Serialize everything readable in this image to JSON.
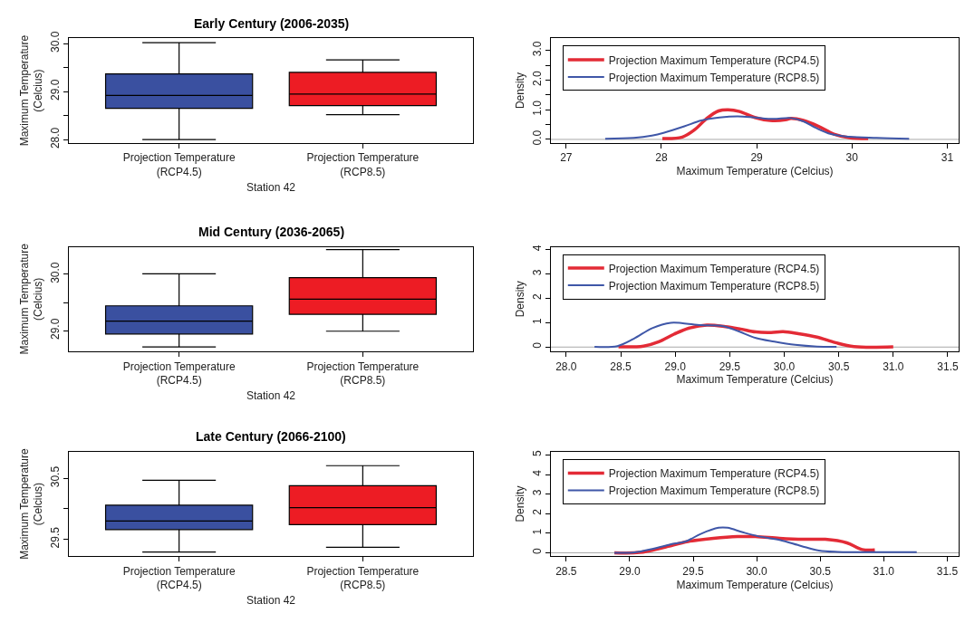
{
  "chart_data": [
    {
      "type": "box",
      "title": "Early Century (2006-2035)",
      "xlabel": "Station 42",
      "ylabel": "Maximum Temperature\n(Celcius)",
      "categories": [
        "Projection Temperature\n(RCP4.5)",
        "Projection Temperature\n(RCP8.5)"
      ],
      "colors": [
        "#3a50a0",
        "#ed1c24"
      ],
      "boxes": [
        {
          "low": 28.0,
          "q1": 28.65,
          "median": 28.92,
          "q3": 29.37,
          "high": 30.02
        },
        {
          "low": 28.52,
          "q1": 28.71,
          "median": 28.95,
          "q3": 29.4,
          "high": 29.66
        }
      ],
      "ylim": [
        27.93,
        30.11
      ],
      "yticks": [
        {
          "value": 28,
          "label": "28.0"
        },
        {
          "value": 28.5,
          "label": null
        },
        {
          "value": 29,
          "label": "29.0"
        },
        {
          "value": 29.5,
          "label": null
        },
        {
          "value": 30,
          "label": "30.0"
        }
      ],
      "legend": false
    },
    {
      "type": "line",
      "xlabel": "Maximum Temperature (Celcius)",
      "ylabel": "Density",
      "legend": "top left",
      "series": [
        {
          "name": "Projection Maximum Temperature (RCP4.5)",
          "color": "#e32b36",
          "x": [
            28.01,
            28.22,
            28.35,
            28.47,
            28.6,
            28.7,
            28.82,
            28.98,
            29.14,
            29.3,
            29.36,
            29.49,
            29.65,
            29.81,
            29.97,
            30.17
          ],
          "values": [
            0.03,
            0.08,
            0.33,
            0.69,
            0.96,
            1.0,
            0.94,
            0.74,
            0.64,
            0.66,
            0.71,
            0.64,
            0.44,
            0.18,
            0.06,
            0.03
          ]
        },
        {
          "name": "Projection Maximum Temperature (RCP8.5)",
          "color": "#3f57a8",
          "x": [
            27.41,
            27.71,
            27.9,
            28.03,
            28.24,
            28.42,
            28.61,
            28.8,
            28.98,
            29.17,
            29.36,
            29.49,
            29.62,
            29.78,
            29.97,
            30.26,
            30.6
          ],
          "values": [
            0.02,
            0.05,
            0.13,
            0.23,
            0.44,
            0.64,
            0.74,
            0.78,
            0.74,
            0.69,
            0.72,
            0.61,
            0.39,
            0.18,
            0.09,
            0.05,
            0.02
          ]
        }
      ],
      "xlim": [
        26.84,
        31.12
      ],
      "xticks": [
        27,
        28,
        29,
        30,
        31
      ],
      "ylim": [
        -0.12,
        3.41
      ],
      "yticks": [
        {
          "value": 0,
          "label": "0.0"
        },
        {
          "value": 0.5,
          "label": null
        },
        {
          "value": 1,
          "label": "1.0"
        },
        {
          "value": 1.5,
          "label": null
        },
        {
          "value": 2,
          "label": "2.0"
        },
        {
          "value": 2.5,
          "label": null
        },
        {
          "value": 3,
          "label": "3.0"
        }
      ],
      "ref_lines": [
        {
          "axis": "y",
          "value": 0,
          "color": "#aaaaaa"
        }
      ]
    },
    {
      "type": "box",
      "title": "Mid Century (2036-2065)",
      "xlabel": "Station 42",
      "ylabel": "Maximum Temperature\n(Celcius)",
      "categories": [
        "Projection Temperature\n(RCP4.5)",
        "Projection Temperature\n(RCP8.5)"
      ],
      "colors": [
        "#3a50a0",
        "#ed1c24"
      ],
      "boxes": [
        {
          "low": 28.71,
          "q1": 28.94,
          "median": 29.17,
          "q3": 29.44,
          "high": 30.01
        },
        {
          "low": 28.99,
          "q1": 29.29,
          "median": 29.56,
          "q3": 29.94,
          "high": 30.44
        }
      ],
      "ylim": [
        28.63,
        30.49
      ],
      "yticks": [
        {
          "value": 29,
          "label": "29.0"
        },
        {
          "value": 29.5,
          "label": null
        },
        {
          "value": 30,
          "label": "30.0"
        }
      ],
      "legend": false
    },
    {
      "type": "line",
      "xlabel": "Maximum Temperature (Celcius)",
      "ylabel": "Density",
      "legend": "top left",
      "series": [
        {
          "name": "Projection Maximum Temperature (RCP4.5)",
          "color": "#e32b36",
          "x": [
            28.48,
            28.71,
            28.85,
            28.99,
            29.13,
            29.29,
            29.46,
            29.6,
            29.74,
            29.88,
            29.99,
            30.13,
            30.3,
            30.47,
            30.64,
            31.0
          ],
          "values": [
            0.01,
            0.04,
            0.22,
            0.53,
            0.78,
            0.9,
            0.84,
            0.74,
            0.62,
            0.6,
            0.63,
            0.55,
            0.41,
            0.18,
            0.02,
            0.01
          ]
        },
        {
          "name": "Projection Maximum Temperature (RCP8.5)",
          "color": "#3f57a8",
          "x": [
            28.26,
            28.47,
            28.62,
            28.79,
            28.96,
            29.07,
            29.24,
            29.44,
            29.58,
            29.74,
            29.91,
            30.1,
            30.3,
            30.48
          ],
          "values": [
            0.01,
            0.04,
            0.34,
            0.78,
            1.0,
            0.98,
            0.9,
            0.86,
            0.65,
            0.37,
            0.22,
            0.09,
            0.02,
            0.01
          ]
        }
      ],
      "xlim": [
        27.86,
        31.6
      ],
      "xticks": [
        {
          "value": 28,
          "label": "28.0"
        },
        28.5,
        {
          "value": 29,
          "label": "29.0"
        },
        29.5,
        {
          "value": 30,
          "label": "30.0"
        },
        30.5,
        {
          "value": 31,
          "label": "31.0"
        },
        31.5
      ],
      "ylim": [
        -0.18,
        4.12
      ],
      "yticks": [
        0,
        1,
        2,
        3,
        4
      ],
      "ref_lines": [
        {
          "axis": "y",
          "value": 0,
          "color": "#aaaaaa"
        }
      ]
    },
    {
      "type": "box",
      "title": "Late Century (2066-2100)",
      "xlabel": "Station 42",
      "ylabel": "Maximum Temperature\n(Celcius)",
      "categories": [
        "Projection Temperature\n(RCP4.5)",
        "Projection Temperature\n(RCP8.5)"
      ],
      "colors": [
        "#3a50a0",
        "#ed1c24"
      ],
      "boxes": [
        {
          "low": 29.29,
          "q1": 29.66,
          "median": 29.8,
          "q3": 30.06,
          "high": 30.47
        },
        {
          "low": 29.37,
          "q1": 29.74,
          "median": 30.02,
          "q3": 30.38,
          "high": 30.71
        }
      ],
      "ylim": [
        29.22,
        30.94
      ],
      "yticks": [
        {
          "value": 29.5,
          "label": "29.5"
        },
        {
          "value": 30,
          "label": null
        },
        {
          "value": 30.5,
          "label": "30.5"
        }
      ],
      "legend": false
    },
    {
      "type": "line",
      "xlabel": "Maximum Temperature (Celcius)",
      "ylabel": "Density",
      "legend": "top left",
      "series": [
        {
          "name": "Projection Maximum Temperature (RCP4.5)",
          "color": "#e32b36",
          "x": [
            28.88,
            29.08,
            29.27,
            29.46,
            29.66,
            29.85,
            29.99,
            30.18,
            30.37,
            30.54,
            30.71,
            30.83,
            30.93
          ],
          "values": [
            0.0,
            0.02,
            0.28,
            0.58,
            0.74,
            0.83,
            0.83,
            0.74,
            0.69,
            0.69,
            0.51,
            0.17,
            0.15
          ]
        },
        {
          "name": "Projection Maximum Temperature (RCP8.5)",
          "color": "#3f57a8",
          "x": [
            28.88,
            29.04,
            29.18,
            29.32,
            29.44,
            29.56,
            29.7,
            29.77,
            29.89,
            30.01,
            30.18,
            30.35,
            30.49,
            30.64,
            30.95,
            31.26
          ],
          "values": [
            0.0,
            0.02,
            0.2,
            0.43,
            0.58,
            0.97,
            1.28,
            1.28,
            1.05,
            0.85,
            0.66,
            0.35,
            0.12,
            0.05,
            0.03,
            0.03
          ]
        }
      ],
      "xlim": [
        28.38,
        31.59
      ],
      "xticks": [
        28.5,
        {
          "value": 29,
          "label": "29.0"
        },
        29.5,
        {
          "value": 30,
          "label": "30.0"
        },
        30.5,
        {
          "value": 31,
          "label": "31.0"
        },
        31.5
      ],
      "ylim": [
        -0.18,
        5.17
      ],
      "yticks": [
        0,
        1,
        2,
        3,
        4,
        5
      ],
      "ref_lines": [
        {
          "axis": "y",
          "value": 0,
          "color": "#aaaaaa"
        }
      ]
    }
  ]
}
